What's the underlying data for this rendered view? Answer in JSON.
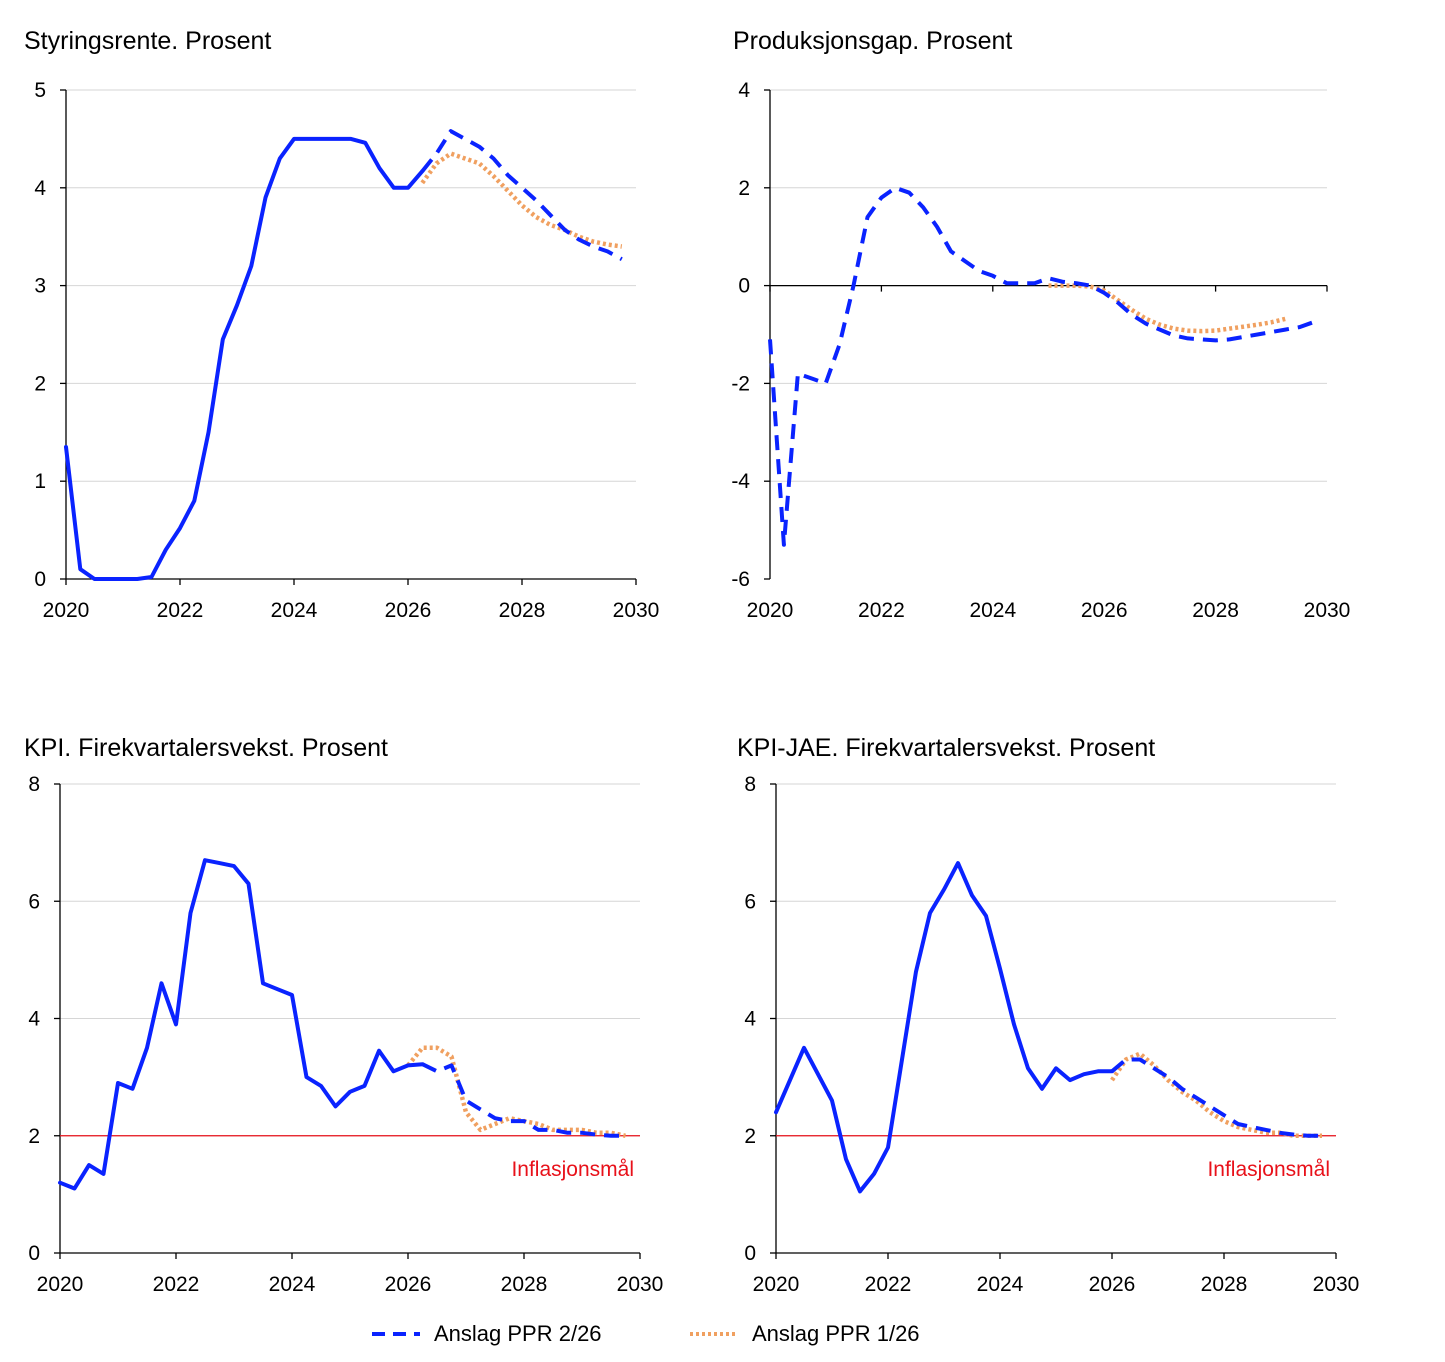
{
  "chart_data": [
    {
      "type": "line",
      "title": "Styringsrente. Prosent",
      "xlim": [
        2020,
        2030
      ],
      "ylim": [
        0,
        5
      ],
      "xticks": [
        2020,
        2022,
        2024,
        2026,
        2028,
        2030
      ],
      "yticks": [
        0,
        1,
        2,
        3,
        4,
        5
      ],
      "grid": true,
      "series": [
        {
          "name": "",
          "style": "solid",
          "color": "#0a23ff",
          "x": [
            2020.0,
            2020.25,
            2020.5,
            2020.75,
            2021.0,
            2021.25,
            2021.5,
            2021.75,
            2022.0,
            2022.25,
            2022.5,
            2022.75,
            2023.0,
            2023.25,
            2023.5,
            2023.75,
            2024.0,
            2024.25,
            2024.5,
            2024.75,
            2025.0,
            2025.25,
            2025.5,
            2025.75,
            2026.0,
            2026.25
          ],
          "y": [
            1.35,
            0.1,
            0.0,
            0.0,
            0.0,
            0.0,
            0.02,
            0.3,
            0.52,
            0.8,
            1.5,
            2.45,
            2.8,
            3.2,
            3.9,
            4.3,
            4.5,
            4.5,
            4.5,
            4.5,
            4.5,
            4.46,
            4.2,
            4.0,
            4.0,
            4.17
          ]
        },
        {
          "name": "Anslag PPR 2/26",
          "style": "dashed",
          "color": "#0a23ff",
          "x": [
            2026.25,
            2026.5,
            2026.75,
            2027.0,
            2027.25,
            2027.5,
            2027.75,
            2028.0,
            2028.25,
            2028.5,
            2028.75,
            2029.0,
            2029.25,
            2029.5,
            2029.75
          ],
          "y": [
            4.17,
            4.35,
            4.58,
            4.5,
            4.42,
            4.3,
            4.13,
            4.0,
            3.87,
            3.72,
            3.57,
            3.47,
            3.4,
            3.35,
            3.27
          ]
        },
        {
          "name": "Anslag PPR 1/26",
          "style": "dotted",
          "color": "#f0a060",
          "x": [
            2026.25,
            2026.5,
            2026.75,
            2027.0,
            2027.25,
            2027.5,
            2027.75,
            2028.0,
            2028.25,
            2028.5,
            2028.75,
            2029.0,
            2029.25,
            2029.5,
            2029.75
          ],
          "y": [
            4.05,
            4.25,
            4.35,
            4.3,
            4.25,
            4.12,
            3.97,
            3.82,
            3.7,
            3.62,
            3.57,
            3.5,
            3.45,
            3.42,
            3.4
          ]
        }
      ]
    },
    {
      "type": "line",
      "title": "Produksjonsgap. Prosent",
      "xlim": [
        2020,
        2030
      ],
      "ylim": [
        -6,
        4
      ],
      "xticks": [
        2020,
        2022,
        2024,
        2026,
        2028,
        2030
      ],
      "yticks": [
        -6,
        -4,
        -2,
        0,
        2,
        4
      ],
      "grid": true,
      "series": [
        {
          "name": "Anslag PPR 2/26",
          "style": "dashed",
          "color": "#0a23ff",
          "x": [
            2020.0,
            2020.25,
            2020.5,
            2020.75,
            2021.0,
            2021.25,
            2021.5,
            2021.75,
            2022.0,
            2022.25,
            2022.5,
            2022.75,
            2023.0,
            2023.25,
            2023.5,
            2023.75,
            2024.0,
            2024.25,
            2024.5,
            2024.75,
            2025.0,
            2025.25,
            2025.5,
            2025.75,
            2026.0,
            2026.25,
            2026.5,
            2026.75,
            2027.0,
            2027.25,
            2027.5,
            2027.75,
            2028.0,
            2028.25,
            2028.5,
            2028.75,
            2029.0,
            2029.25,
            2029.5,
            2029.75
          ],
          "y": [
            -1.1,
            -5.3,
            -1.8,
            -1.9,
            -2.0,
            -1.2,
            0.0,
            1.4,
            1.8,
            2.0,
            1.9,
            1.6,
            1.2,
            0.7,
            0.5,
            0.3,
            0.2,
            0.05,
            0.05,
            0.05,
            0.15,
            0.08,
            0.05,
            0.0,
            -0.15,
            -0.35,
            -0.6,
            -0.78,
            -0.9,
            -1.02,
            -1.08,
            -1.1,
            -1.12,
            -1.1,
            -1.05,
            -1.0,
            -0.95,
            -0.9,
            -0.85,
            -0.75
          ]
        },
        {
          "name": "Anslag PPR 1/26",
          "style": "dotted",
          "color": "#f0a060",
          "x": [
            2025.0,
            2025.25,
            2025.5,
            2025.75,
            2026.0,
            2026.25,
            2026.5,
            2026.75,
            2027.0,
            2027.25,
            2027.5,
            2027.75,
            2028.0,
            2028.25,
            2028.5,
            2028.75,
            2029.0,
            2029.25
          ],
          "y": [
            0.0,
            0.0,
            0.0,
            -0.02,
            -0.1,
            -0.3,
            -0.5,
            -0.68,
            -0.8,
            -0.88,
            -0.92,
            -0.93,
            -0.92,
            -0.88,
            -0.84,
            -0.8,
            -0.75,
            -0.68
          ]
        }
      ]
    },
    {
      "type": "line",
      "title": "KPI. Firekvartalersvekst. Prosent",
      "xlim": [
        2020,
        2030
      ],
      "ylim": [
        0,
        8
      ],
      "xticks": [
        2020,
        2022,
        2024,
        2026,
        2028,
        2030
      ],
      "yticks": [
        0,
        2,
        4,
        6,
        8
      ],
      "grid": true,
      "reference_line": {
        "y": 2,
        "label": "Inflasjonsmål",
        "color": "#e8111a"
      },
      "series": [
        {
          "name": "",
          "style": "solid",
          "color": "#0a23ff",
          "x": [
            2020.0,
            2020.25,
            2020.5,
            2020.75,
            2021.0,
            2021.25,
            2021.5,
            2021.75,
            2022.0,
            2022.25,
            2022.5,
            2022.75,
            2023.0,
            2023.25,
            2023.5,
            2023.75,
            2024.0,
            2024.25,
            2024.5,
            2024.75,
            2025.0,
            2025.25,
            2025.5,
            2025.75,
            2026.0,
            2026.25
          ],
          "y": [
            1.2,
            1.1,
            1.5,
            1.35,
            2.9,
            2.8,
            3.5,
            4.6,
            3.9,
            5.8,
            6.7,
            6.65,
            6.6,
            6.3,
            4.6,
            4.5,
            4.4,
            3.0,
            2.85,
            2.5,
            2.75,
            2.85,
            3.45,
            3.1,
            3.2,
            3.22
          ]
        },
        {
          "name": "Anslag PPR 2/26",
          "style": "dashed",
          "color": "#0a23ff",
          "x": [
            2026.25,
            2026.5,
            2026.75,
            2027.0,
            2027.25,
            2027.5,
            2027.75,
            2028.0,
            2028.25,
            2028.5,
            2028.75,
            2029.0,
            2029.25,
            2029.5,
            2029.75
          ],
          "y": [
            3.22,
            3.1,
            3.2,
            2.6,
            2.45,
            2.3,
            2.25,
            2.25,
            2.1,
            2.1,
            2.05,
            2.05,
            2.02,
            2.0,
            2.0
          ]
        },
        {
          "name": "Anslag PPR 1/26",
          "style": "dotted",
          "color": "#f0a060",
          "x": [
            2026.0,
            2026.25,
            2026.5,
            2026.75,
            2027.0,
            2027.25,
            2027.5,
            2027.75,
            2028.0,
            2028.25,
            2028.5,
            2028.75,
            2029.0,
            2029.25,
            2029.5,
            2029.75
          ],
          "y": [
            3.2,
            3.5,
            3.5,
            3.35,
            2.4,
            2.1,
            2.2,
            2.3,
            2.25,
            2.2,
            2.1,
            2.1,
            2.1,
            2.05,
            2.05,
            2.0
          ]
        }
      ]
    },
    {
      "type": "line",
      "title": "KPI-JAE. Firekvartalersvekst. Prosent",
      "xlim": [
        2020,
        2030
      ],
      "ylim": [
        0,
        8
      ],
      "xticks": [
        2020,
        2022,
        2024,
        2026,
        2028,
        2030
      ],
      "yticks": [
        0,
        2,
        4,
        6,
        8
      ],
      "grid": true,
      "reference_line": {
        "y": 2,
        "label": "Inflasjonsmål",
        "color": "#e8111a"
      },
      "series": [
        {
          "name": "",
          "style": "solid",
          "color": "#0a23ff",
          "x": [
            2020.0,
            2020.25,
            2020.5,
            2020.75,
            2021.0,
            2021.25,
            2021.5,
            2021.75,
            2022.0,
            2022.25,
            2022.5,
            2022.75,
            2023.0,
            2023.25,
            2023.5,
            2023.75,
            2024.0,
            2024.25,
            2024.5,
            2024.75,
            2025.0,
            2025.25,
            2025.5,
            2025.75,
            2026.0
          ],
          "y": [
            2.4,
            2.95,
            3.5,
            3.05,
            2.6,
            1.6,
            1.05,
            1.35,
            1.8,
            3.3,
            4.8,
            5.8,
            6.2,
            6.65,
            6.1,
            5.75,
            4.85,
            3.9,
            3.15,
            2.8,
            3.15,
            2.95,
            3.05,
            3.1,
            3.1
          ]
        },
        {
          "name": "Anslag PPR 2/26",
          "style": "dashed",
          "color": "#0a23ff",
          "x": [
            2026.0,
            2026.25,
            2026.5,
            2026.75,
            2027.0,
            2027.25,
            2027.5,
            2027.75,
            2028.0,
            2028.25,
            2028.5,
            2028.75,
            2029.0,
            2029.25,
            2029.5,
            2029.75
          ],
          "y": [
            3.1,
            3.3,
            3.3,
            3.15,
            3.0,
            2.8,
            2.65,
            2.5,
            2.35,
            2.2,
            2.15,
            2.1,
            2.05,
            2.02,
            2.0,
            2.0
          ]
        },
        {
          "name": "Anslag PPR 1/26",
          "style": "dotted",
          "color": "#f0a060",
          "x": [
            2026.0,
            2026.25,
            2026.5,
            2026.75,
            2027.0,
            2027.25,
            2027.5,
            2027.75,
            2028.0,
            2028.25,
            2028.5,
            2028.75,
            2029.0,
            2029.25,
            2029.5,
            2029.75
          ],
          "y": [
            2.95,
            3.3,
            3.4,
            3.2,
            2.95,
            2.75,
            2.6,
            2.4,
            2.25,
            2.15,
            2.1,
            2.05,
            2.05,
            2.0,
            2.0,
            2.0
          ]
        }
      ]
    }
  ],
  "legend": {
    "items": [
      {
        "label": "Anslag PPR 2/26",
        "style": "dashed",
        "color": "#0a23ff"
      },
      {
        "label": "Anslag PPR 1/26",
        "style": "dotted",
        "color": "#f0a060"
      }
    ]
  }
}
